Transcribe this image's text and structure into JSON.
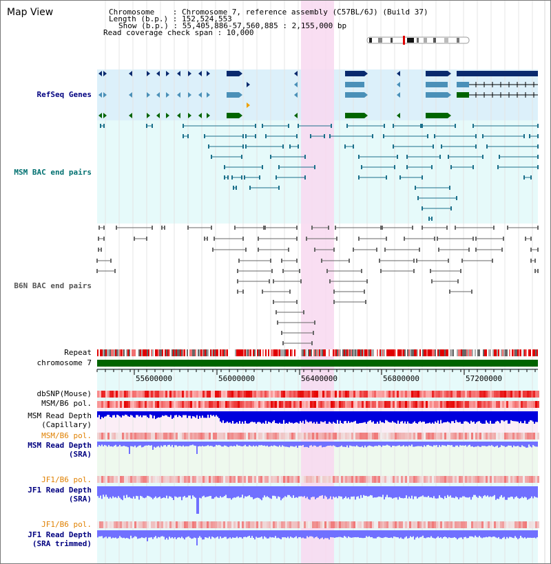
{
  "title": "Map View",
  "info": {
    "chromosome_line": "Chromosome    : Chromosome 7, reference assembly (C57BL/6J) (Build 37)",
    "length_line": "Length (b.p.) : 152,524,553",
    "show_line": "Show (b.p.) : 55,405,886-57,560,885 : 2,155,000 bp",
    "span_line": "Read coverage check span : 10,000"
  },
  "tracks": {
    "refseq": "RefSeq Genes",
    "msm_bac": "MSM BAC end pairs",
    "b6n_bac": "B6N BAC end pairs",
    "repeat": "Repeat",
    "chromosome": "chromosome 7",
    "dbsnp": "dbSNP(Mouse)",
    "msm_b6_pol_1": "MSM/B6 pol.",
    "msm_read_depth_cap_1": "MSM Read Depth",
    "msm_read_depth_cap_2": "(Capillary)",
    "msm_b6_pol_2": "MSM/B6 pol.",
    "msm_read_depth_sra_1": "MSM Read Depth",
    "msm_read_depth_sra_2": "(SRA)",
    "jf1_b6_pol_1": "JF1/B6 pol.",
    "jf1_read_depth_sra_1": "JF1 Read Depth",
    "jf1_read_depth_sra_2": "(SRA)",
    "jf1_b6_pol_2": "JF1/B6 pol.",
    "jf1_read_depth_trim_1": "JF1 Read Depth",
    "jf1_read_depth_trim_2": "(SRA trimmed)"
  },
  "axis_ticks": [
    "55600000",
    "56000000",
    "56400000",
    "56800000",
    "57200000"
  ],
  "colors": {
    "refseq_bg": "#dcf0fa",
    "msm_bg": "#e6fafa",
    "highlight": "#f8d8f0",
    "gene_dark": "#0a2a6e",
    "gene_mid": "#4a90b8",
    "gene_green": "#006400",
    "msm_line": "#1a6f8a",
    "b6n_line": "#666666",
    "chrom_green": "#006400",
    "depth_blue": "#0000dd",
    "depth_light": "#7070ff"
  }
}
